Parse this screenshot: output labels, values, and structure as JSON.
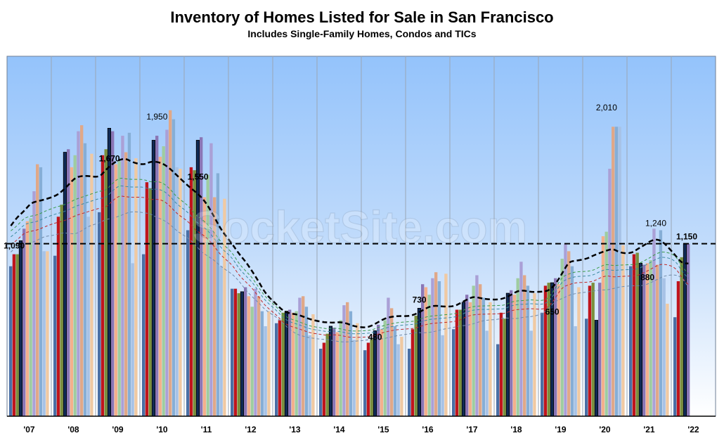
{
  "chart_data": {
    "type": "bar",
    "title": "Inventory of Homes Listed for Sale in San Francisco",
    "subtitle": "Includes Single-Family Homes, Condos and TICs",
    "categories": [
      "'07",
      "'08",
      "'09",
      "'10",
      "'11",
      "'12",
      "'13",
      "'14",
      "'15",
      "'16",
      "'17",
      "'18",
      "'19",
      "'20",
      "'21",
      "'22"
    ],
    "ylim": [
      0,
      2400
    ],
    "grid": "vertical separators between years",
    "bars_per_year": 12,
    "month_colors": [
      "#4a6fa5",
      "#c0141c",
      "#7a8f3c",
      "#1c3f78",
      "#8a76b5",
      "#f4b08c",
      "#9fcca0",
      "#aaa0d6",
      "#e0a888",
      "#86aed6",
      "#a7c2e6",
      "#f0c9a2"
    ],
    "highlighted_month_color": "#102a55",
    "values": [
      [
        1000,
        1080,
        1080,
        1170,
        1250,
        1300,
        1320,
        1500,
        1680,
        1660,
        1100,
        1100
      ],
      [
        1070,
        1330,
        1410,
        1760,
        1780,
        1660,
        1740,
        1900,
        1940,
        1820,
        1330,
        1750
      ],
      [
        1360,
        1740,
        1780,
        1920,
        1900,
        1680,
        1700,
        1870,
        1760,
        1890,
        1020,
        1720
      ],
      [
        1080,
        1560,
        1520,
        1840,
        1870,
        1730,
        1800,
        1910,
        2040,
        1980,
        1660,
        1650
      ],
      [
        1240,
        1660,
        1640,
        1840,
        1860,
        1460,
        1610,
        1820,
        1460,
        1620,
        1000,
        1450
      ],
      [
        850,
        850,
        820,
        830,
        860,
        800,
        730,
        850,
        800,
        700,
        600,
        700
      ],
      [
        620,
        640,
        690,
        700,
        710,
        690,
        700,
        790,
        800,
        730,
        540,
        680
      ],
      [
        450,
        490,
        550,
        600,
        590,
        560,
        640,
        740,
        760,
        700,
        510,
        620
      ],
      [
        440,
        490,
        520,
        570,
        610,
        580,
        640,
        790,
        720,
        600,
        480,
        530
      ],
      [
        450,
        580,
        670,
        720,
        880,
        860,
        810,
        920,
        960,
        900,
        540,
        950
      ],
      [
        580,
        710,
        710,
        760,
        810,
        760,
        870,
        940,
        880,
        790,
        570,
        760
      ],
      [
        480,
        690,
        650,
        820,
        840,
        810,
        920,
        1030,
        940,
        870,
        570,
        820
      ],
      [
        690,
        870,
        890,
        890,
        920,
        880,
        1050,
        1150,
        1100,
        1000,
        600,
        860
      ],
      [
        650,
        870,
        890,
        640,
        890,
        1200,
        1230,
        1650,
        1930,
        1930,
        1930,
        1140
      ],
      [
        1000,
        1080,
        1090,
        1020,
        1010,
        1020,
        1040,
        1250,
        1010,
        1240,
        920,
        750
      ],
      [
        660,
        900,
        1060,
        1150,
        1150
      ]
    ],
    "reference_line": {
      "value": 1150,
      "style": "dashed"
    },
    "trend_lines": [
      {
        "color": "#000000",
        "style": "bold dashed"
      },
      {
        "color": "#3a9a4a",
        "style": "dashed"
      },
      {
        "color": "#c02828",
        "style": "dashed"
      },
      {
        "color": "#3a8aa0",
        "style": "dashed"
      },
      {
        "color": "#708aa8",
        "style": "dashed"
      }
    ],
    "annotations": [
      {
        "text": "1,090",
        "year_index": 0,
        "value": 1090,
        "bold": true
      },
      {
        "text": "1,670",
        "year_index": 2,
        "value": 1670,
        "bold": true
      },
      {
        "text": "1,950",
        "year_index": 3,
        "value": 1950,
        "bold": false
      },
      {
        "text": "1,550",
        "year_index": 4,
        "value": 1550,
        "bold": true
      },
      {
        "text": "480",
        "year_index": 8,
        "value": 480,
        "bold": true
      },
      {
        "text": "730",
        "year_index": 9,
        "value": 730,
        "bold": true
      },
      {
        "text": "650",
        "year_index": 12,
        "value": 650,
        "bold": true
      },
      {
        "text": "2,010",
        "year_index": 13,
        "value": 2010,
        "bold": false
      },
      {
        "text": "880",
        "year_index": 14,
        "value": 880,
        "bold": true
      },
      {
        "text": "1,240",
        "year_index": 14,
        "value": 1240,
        "bold": false
      },
      {
        "text": "1,150",
        "year_index": 15,
        "value": 1150,
        "bold": true
      }
    ]
  },
  "watermark": "SocketSite.com",
  "colors": {
    "plot_top": "#94c3fb",
    "plot_bottom": "#ffffff",
    "separator": "#9aa6b4"
  }
}
